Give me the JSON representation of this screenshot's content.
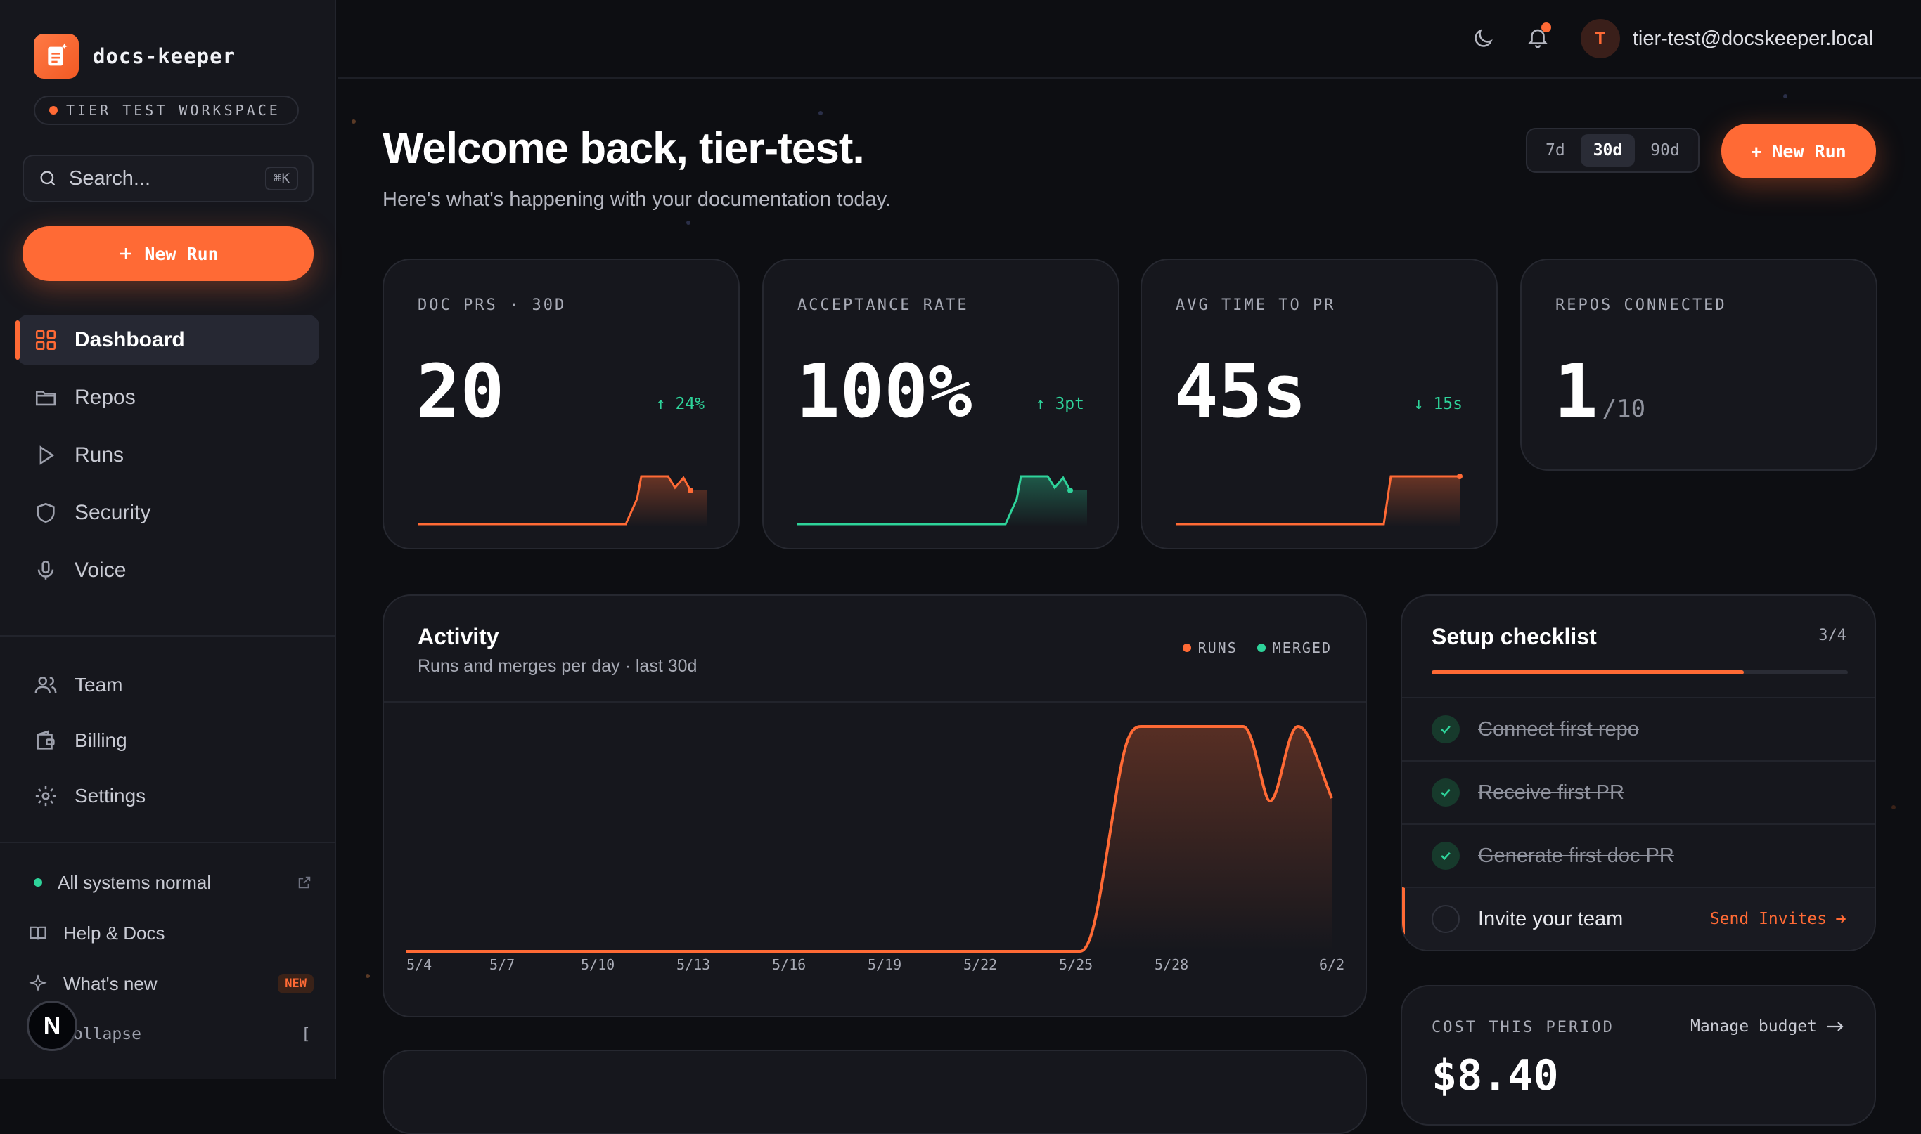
{
  "app": {
    "name": "docs-keeper",
    "workspace": "TIER TEST WORKSPACE"
  },
  "search": {
    "placeholder": "Search...",
    "shortcut": "⌘K"
  },
  "sidebar": {
    "new_run": "New Run",
    "nav": [
      {
        "label": "Dashboard",
        "icon": "grid-icon",
        "active": true
      },
      {
        "label": "Repos",
        "icon": "folder-icon"
      },
      {
        "label": "Runs",
        "icon": "play-icon"
      },
      {
        "label": "Security",
        "icon": "shield-icon"
      },
      {
        "label": "Voice",
        "icon": "microphone-icon"
      }
    ],
    "nav2": [
      {
        "label": "Team",
        "icon": "users-icon"
      },
      {
        "label": "Billing",
        "icon": "wallet-icon"
      },
      {
        "label": "Settings",
        "icon": "gear-icon"
      }
    ],
    "status": "All systems normal",
    "help": "Help & Docs",
    "whats_new": "What's new",
    "new_badge": "NEW",
    "collapse": "ollapse",
    "collapse_key": "[",
    "avatar_letter": "N"
  },
  "topbar": {
    "user_initial": "T",
    "user_email": "tier-test@docskeeper.local"
  },
  "header": {
    "title": "Welcome back, tier-test.",
    "subtitle": "Here's what's happening with your documentation today.",
    "ranges": [
      "7d",
      "30d",
      "90d"
    ],
    "selected_range": "30d",
    "new_run": "+ New Run"
  },
  "kpis": [
    {
      "label": "DOC PRS · 30D",
      "value": "20",
      "delta": "24%",
      "delta_dir": "up"
    },
    {
      "label": "ACCEPTANCE RATE",
      "value": "100%",
      "delta": "3pt",
      "delta_dir": "up"
    },
    {
      "label": "AVG TIME TO PR",
      "value": "45s",
      "delta": "15s",
      "delta_dir": "down"
    },
    {
      "label": "REPOS CONNECTED",
      "value": "1",
      "of": "/10"
    }
  ],
  "activity": {
    "title": "Activity",
    "subtitle": "Runs and merges per day · last 30d",
    "legend": [
      "RUNS",
      "MERGED"
    ],
    "x_ticks": [
      "5/4",
      "5/7",
      "5/10",
      "5/13",
      "5/16",
      "5/19",
      "5/22",
      "5/25",
      "5/28",
      "6/2"
    ]
  },
  "checklist": {
    "title": "Setup checklist",
    "count": "3/4",
    "progress": 0.75,
    "items": [
      {
        "label": "Connect first repo",
        "done": true
      },
      {
        "label": "Receive first PR",
        "done": true
      },
      {
        "label": "Generate first doc PR",
        "done": true
      },
      {
        "label": "Invite your team",
        "done": false,
        "action": "Send Invites"
      }
    ]
  },
  "cost": {
    "label": "COST THIS PERIOD",
    "link": "Manage budget",
    "value": "$8.40"
  },
  "colors": {
    "accent": "#ff6a35",
    "green": "#2ed39a",
    "bg": "#0d0e12",
    "card": "#16171d"
  }
}
